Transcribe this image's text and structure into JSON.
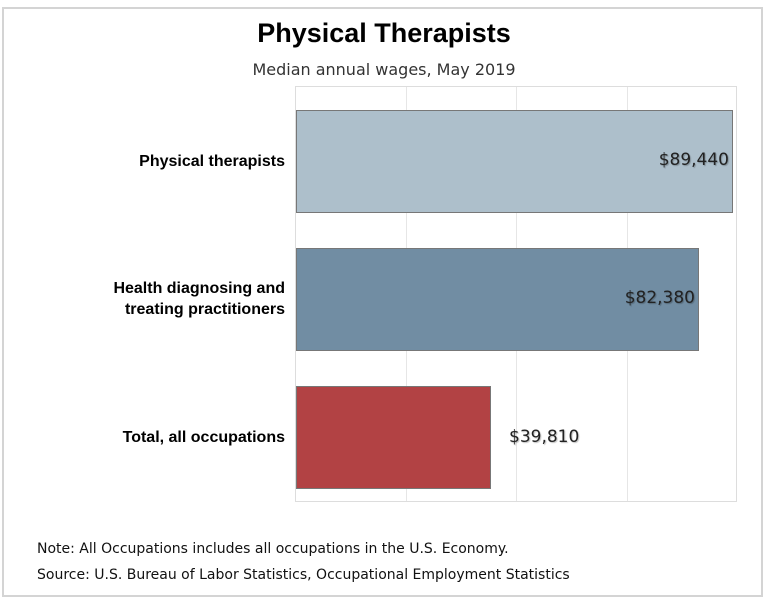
{
  "chart_data": {
    "type": "bar",
    "orientation": "horizontal",
    "title": "Physical Therapists",
    "subtitle": "Median annual wages, May 2019",
    "categories": [
      "Physical therapists",
      "Health diagnosing and treating practitioners",
      "Total, all occupations"
    ],
    "category_lines": [
      [
        "Physical therapists"
      ],
      [
        "Health diagnosing and",
        "treating practitioners"
      ],
      [
        "Total, all occupations"
      ]
    ],
    "values": [
      89440,
      82380,
      39810
    ],
    "value_labels": [
      "$89,440",
      "$82,380",
      "$39,810"
    ],
    "colors": [
      "#adbfcb",
      "#718da3",
      "#b24244"
    ],
    "xlabel": "",
    "ylabel": "",
    "xlim": [
      0,
      90000
    ],
    "gridlines": [
      22500,
      45000,
      67500
    ],
    "grid": true,
    "legend": null
  },
  "footer": {
    "note": "Note: All Occupations includes all occupations in the U.S. Economy.",
    "source": "Source: U.S. Bureau of Labor Statistics, Occupational Employment Statistics"
  }
}
